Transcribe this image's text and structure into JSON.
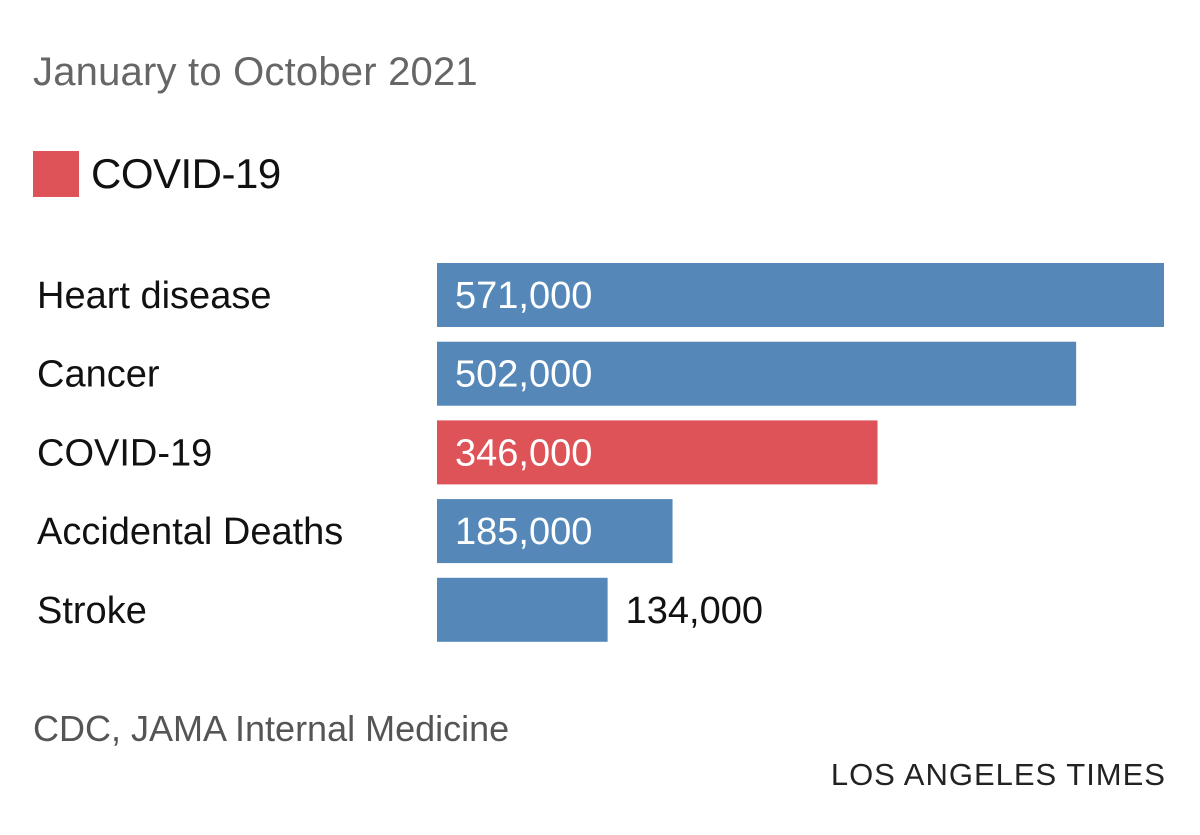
{
  "subtitle": "January to October 2021",
  "legend": {
    "label": "COVID-19",
    "color": "#dd5357"
  },
  "colors": {
    "default_bar": "#5588b9",
    "highlight_bar": "#dd5357",
    "label_text": "#111111",
    "inside_value_text": "#ffffff",
    "outside_value_text": "#111111"
  },
  "chart_data": {
    "type": "bar",
    "orientation": "horizontal",
    "categories": [
      "Heart disease",
      "Cancer",
      "COVID-19",
      "Accidental Deaths",
      "Stroke"
    ],
    "values": [
      571000,
      502000,
      346000,
      185000,
      134000
    ],
    "value_labels": [
      "571,000",
      "502,000",
      "346,000",
      "185,000",
      "134,000"
    ],
    "highlight": "COVID-19",
    "xlim": [
      0,
      571000
    ],
    "title": "January to October 2021",
    "xlabel": "",
    "ylabel": "",
    "grid": false
  },
  "source": "CDC, JAMA Internal Medicine",
  "credit": "LOS ANGELES TIMES"
}
